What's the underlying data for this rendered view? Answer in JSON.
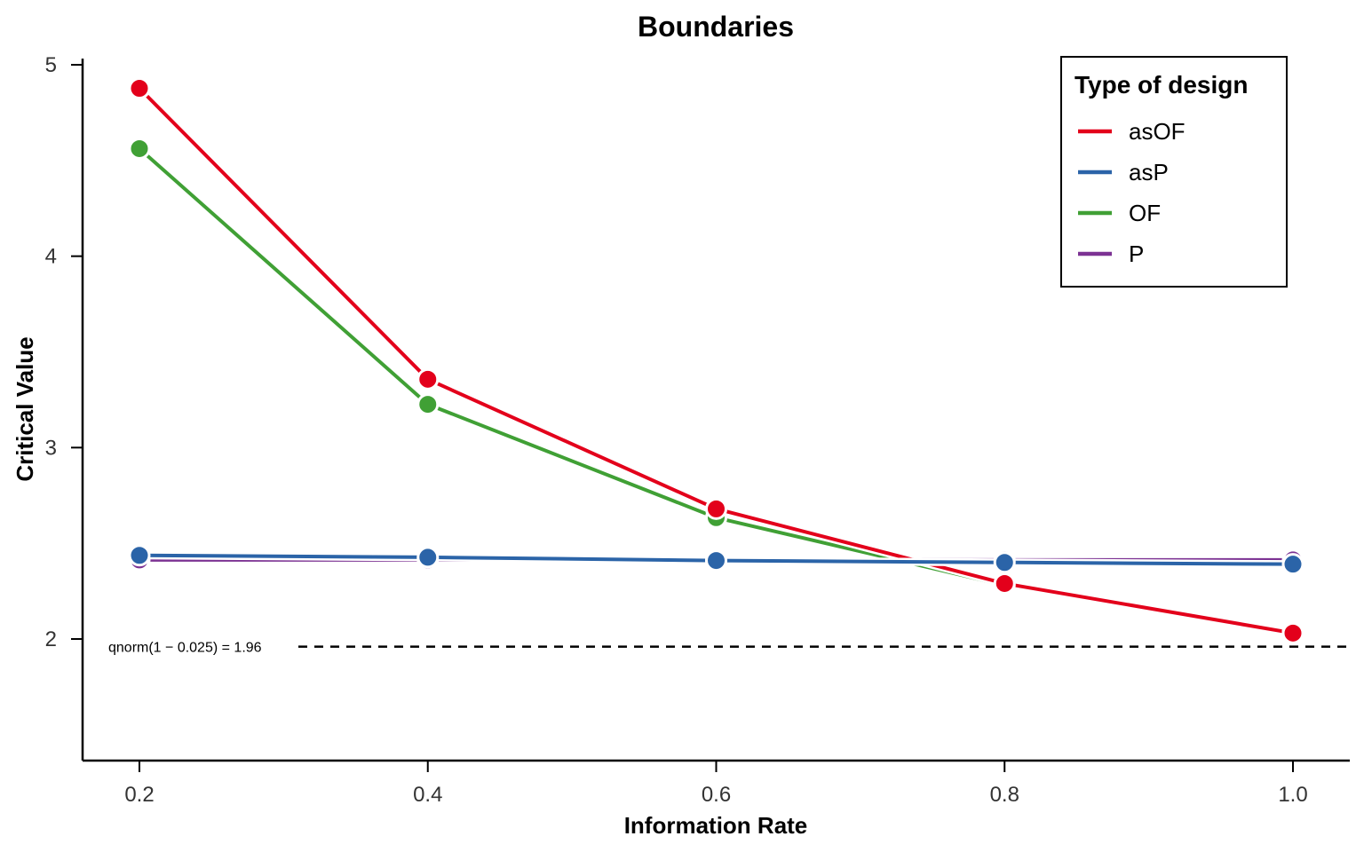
{
  "chart_data": {
    "type": "line",
    "title": "Boundaries",
    "xlabel": "Information Rate",
    "ylabel": "Critical Value",
    "x": [
      0.2,
      0.4,
      0.6,
      0.8,
      1.0
    ],
    "x_tick_labels": [
      "0.2",
      "0.4",
      "0.6",
      "0.8",
      "1.0"
    ],
    "y_ticks": [
      2,
      3,
      4,
      5
    ],
    "y_tick_labels": [
      "2",
      "3",
      "4",
      "5"
    ],
    "xlim": [
      0.16,
      1.04
    ],
    "ylim": [
      1.38,
      5.04
    ],
    "grid": false,
    "legend": {
      "title": "Type of design",
      "placement": "top-right"
    },
    "series": [
      {
        "name": "asOF",
        "color": "#e3001b",
        "values": [
          4.877,
          3.357,
          2.68,
          2.29,
          2.031
        ]
      },
      {
        "name": "asP",
        "color": "#2b64a8",
        "values": [
          2.437,
          2.427,
          2.41,
          2.4,
          2.391
        ]
      },
      {
        "name": "OF",
        "color": "#40a035",
        "values": [
          4.562,
          3.226,
          2.634,
          2.281,
          2.04
        ]
      },
      {
        "name": "P",
        "color": "#7c3293",
        "values": [
          2.413,
          2.413,
          2.413,
          2.413,
          2.413
        ]
      }
    ],
    "draw_order": [
      "P",
      "OF",
      "asOF",
      "asP"
    ],
    "reference_line": {
      "value": 1.96,
      "style": "dashed",
      "color": "#000000",
      "label": "qnorm(1 − 0.025) = 1.96"
    }
  }
}
